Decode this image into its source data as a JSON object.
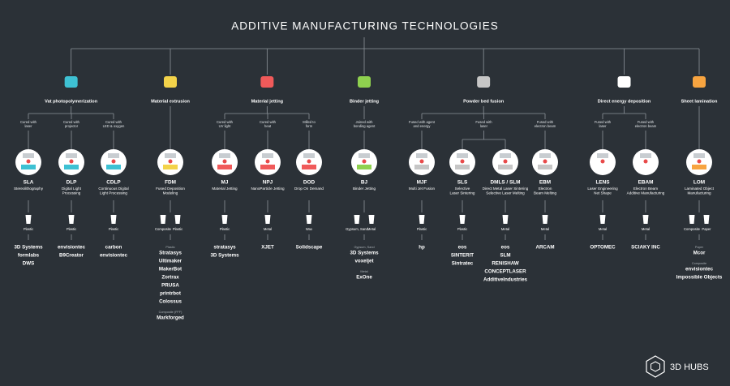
{
  "title": "ADDITIVE MANUFACTURING TECHNOLOGIES",
  "categories": [
    {
      "label": "Vat photopolymerization",
      "processes": [
        {
          "label": [
            "Cured with",
            "laser"
          ],
          "techs": [
            {
              "abbr": "SLA",
              "name": [
                "Stereolithography"
              ],
              "materials": [
                "Plastic"
              ],
              "brands": [
                {
                  "names": [
                    "3D Systems",
                    "formlabs",
                    "DWS"
                  ]
                }
              ]
            }
          ]
        },
        {
          "label": [
            "Cured with",
            "projector"
          ],
          "techs": [
            {
              "abbr": "DLP",
              "name": [
                "Digital Light",
                "Processing"
              ],
              "materials": [
                "Plastic"
              ],
              "brands": [
                {
                  "names": [
                    "envisiontec",
                    "B9Creator"
                  ]
                }
              ]
            }
          ]
        },
        {
          "label": [
            "Cured with",
            "LED & oxygen"
          ],
          "techs": [
            {
              "abbr": "CDLP",
              "name": [
                "Continuous Digital",
                "Light Processing"
              ],
              "materials": [
                "Plastic"
              ],
              "brands": [
                {
                  "names": [
                    "carbon",
                    "envisiontec"
                  ]
                }
              ]
            }
          ]
        }
      ]
    },
    {
      "label": "Material extrusion",
      "processes": [
        {
          "techs": [
            {
              "abbr": "FDM",
              "name": [
                "Fused Deposition",
                "Modeling"
              ],
              "materials": [
                "Composite",
                "Plastic"
              ],
              "brands": [
                {
                  "label": "Plastic",
                  "names": [
                    "Stratasys",
                    "Ultimaker",
                    "MakerBot",
                    "Zortrax",
                    "PRUSA",
                    "printrbot",
                    "Colossus"
                  ]
                },
                {
                  "label": "Composite (FFF)",
                  "names": [
                    "Markforged"
                  ]
                }
              ]
            }
          ]
        }
      ]
    },
    {
      "label": "Material jetting",
      "processes": [
        {
          "label": [
            "Cured with",
            "UV light"
          ],
          "techs": [
            {
              "abbr": "MJ",
              "name": [
                "Material Jetting"
              ],
              "materials": [
                "Plastic"
              ],
              "brands": [
                {
                  "names": [
                    "stratasys",
                    "3D Systems"
                  ]
                }
              ]
            }
          ]
        },
        {
          "label": [
            "Cured with",
            "heat"
          ],
          "techs": [
            {
              "abbr": "NPJ",
              "name": [
                "NanoParticle Jetting"
              ],
              "materials": [
                "Metal"
              ],
              "brands": [
                {
                  "names": [
                    "XJET"
                  ]
                }
              ]
            }
          ]
        },
        {
          "label": [
            "Milled to",
            "form"
          ],
          "techs": [
            {
              "abbr": "DOD",
              "name": [
                "Drop On Demand"
              ],
              "materials": [
                "Wax"
              ],
              "brands": [
                {
                  "names": [
                    "Solidscape"
                  ]
                }
              ]
            }
          ]
        }
      ]
    },
    {
      "label": "Binder jetting",
      "processes": [
        {
          "label": [
            "Joined with",
            "bonding agent"
          ],
          "techs": [
            {
              "abbr": "BJ",
              "name": [
                "Binder Jetting"
              ],
              "materials": [
                "Gypsum, Sand",
                "Metal"
              ],
              "brands": [
                {
                  "label": "Gypsum, Sand",
                  "names": [
                    "3D Systems",
                    "voxeljet"
                  ]
                },
                {
                  "label": "Metal",
                  "names": [
                    "ExOne"
                  ]
                }
              ]
            }
          ]
        }
      ]
    },
    {
      "label": "Powder bed fusion",
      "processes": [
        {
          "label": [
            "Fused with agent",
            "and energy"
          ],
          "techs": [
            {
              "abbr": "MJF",
              "name": [
                "Multi Jet Fusion"
              ],
              "materials": [
                "Plastic"
              ],
              "brands": [
                {
                  "names": [
                    "hp"
                  ]
                }
              ]
            }
          ]
        },
        {
          "label": [
            "Fused with",
            "laser"
          ],
          "techs": [
            {
              "abbr": "SLS",
              "name": [
                "Selective",
                "Laser Sintering"
              ],
              "materials": [
                "Plastic"
              ],
              "brands": [
                {
                  "names": [
                    "eos",
                    "SINTERIT",
                    "Sintratec"
                  ]
                }
              ]
            },
            {
              "abbr": "DMLS / SLM",
              "name": [
                "Direct Metal Laser Sintering",
                "Selective Laser Melting"
              ],
              "materials": [
                "Metal"
              ],
              "brands": [
                {
                  "names": [
                    "eos",
                    "SLM",
                    "RENISHAW",
                    "CONCEPTLASER",
                    "AdditiveIndustries"
                  ]
                }
              ]
            }
          ]
        },
        {
          "label": [
            "Fused with",
            "electron beam"
          ],
          "techs": [
            {
              "abbr": "EBM",
              "name": [
                "Electron",
                "Beam Melting"
              ],
              "materials": [
                "Metal"
              ],
              "brands": [
                {
                  "names": [
                    "ARCAM"
                  ]
                }
              ]
            }
          ]
        }
      ]
    },
    {
      "label": "Direct energy deposition",
      "processes": [
        {
          "label": [
            "Fused with",
            "laser"
          ],
          "techs": [
            {
              "abbr": "LENS",
              "name": [
                "Laser Engineering",
                "Net Shape"
              ],
              "materials": [
                "Metal"
              ],
              "brands": [
                {
                  "names": [
                    "OPTOMEC"
                  ]
                }
              ]
            }
          ]
        },
        {
          "label": [
            "Fused with",
            "electron beam"
          ],
          "techs": [
            {
              "abbr": "EBAM",
              "name": [
                "Electron Beam",
                "Additive Manufacturing"
              ],
              "materials": [
                "Metal"
              ],
              "brands": [
                {
                  "names": [
                    "SCIAKY INC"
                  ]
                }
              ]
            }
          ]
        }
      ]
    },
    {
      "label": "Sheet lamination",
      "processes": [
        {
          "techs": [
            {
              "abbr": "LOM",
              "name": [
                "Laminated Object",
                "Manufacturing"
              ],
              "materials": [
                "Composite",
                "Paper"
              ],
              "brands": [
                {
                  "label": "Paper",
                  "names": [
                    "Mcor"
                  ]
                },
                {
                  "label": "Composite",
                  "names": [
                    "envisiontec",
                    "Impossible Objects"
                  ]
                }
              ]
            }
          ]
        }
      ]
    }
  ],
  "footer": "3D HUBS"
}
